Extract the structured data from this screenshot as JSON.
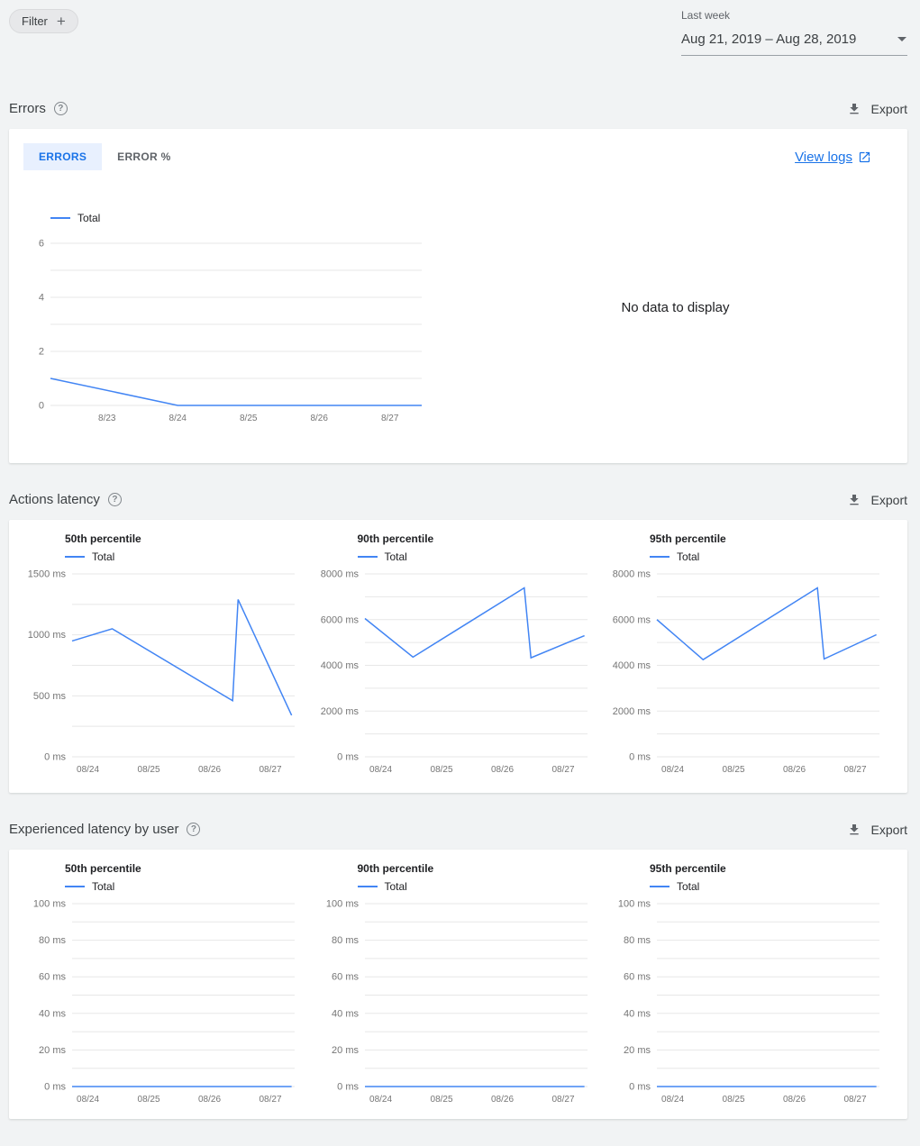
{
  "colors": {
    "accent": "#4285f4",
    "tab_active_bg": "#e8f0fe",
    "link": "#1a73e8",
    "page_bg": "#f1f3f4"
  },
  "icons": {
    "help_glyph": "?",
    "plus_glyph": "+"
  },
  "header": {
    "filter_label": "Filter",
    "period_label": "Last week",
    "period_value": "Aug 21, 2019 – Aug 28, 2019"
  },
  "errors_section": {
    "title": "Errors",
    "export_label": "Export",
    "tab_errors": "ERRORS",
    "tab_error_pct": "ERROR %",
    "view_logs_label": "View logs",
    "legend_label": "Total",
    "no_data_text": "No data to display",
    "chart_data": {
      "type": "line",
      "x_min": 22.2,
      "x_max": 27.45,
      "x_ticks": [
        {
          "v": 23,
          "label": "8/23"
        },
        {
          "v": 24,
          "label": "8/24"
        },
        {
          "v": 25,
          "label": "8/25"
        },
        {
          "v": 26,
          "label": "8/26"
        },
        {
          "v": 27,
          "label": "8/27"
        }
      ],
      "y_min": 0,
      "y_max": 6.2,
      "y_gridlines": [
        0,
        1,
        2,
        3,
        4,
        5,
        6
      ],
      "y_ticks": [
        {
          "v": 0,
          "label": "0"
        },
        {
          "v": 2,
          "label": "2"
        },
        {
          "v": 4,
          "label": "4"
        },
        {
          "v": 6,
          "label": "6"
        }
      ],
      "series": [
        {
          "name": "Total",
          "color": "#4285f4",
          "points": [
            [
              22.2,
              1
            ],
            [
              24,
              0
            ],
            [
              27.45,
              0
            ]
          ]
        }
      ]
    }
  },
  "actions_latency_section": {
    "title": "Actions latency",
    "export_label": "Export",
    "charts": [
      {
        "title": "50th percentile",
        "legend_label": "Total",
        "chart_data": {
          "type": "line",
          "x_min": 23.74,
          "x_max": 27.4,
          "x_ticks": [
            {
              "v": 24,
              "label": "08/24"
            },
            {
              "v": 25,
              "label": "08/25"
            },
            {
              "v": 26,
              "label": "08/26"
            },
            {
              "v": 27,
              "label": "08/27"
            }
          ],
          "y_min": 0,
          "y_max": 1500,
          "y_gridlines": [
            0,
            250,
            500,
            750,
            1000,
            1250,
            1500
          ],
          "y_ticks": [
            {
              "v": 0,
              "label": "0 ms"
            },
            {
              "v": 500,
              "label": "500 ms"
            },
            {
              "v": 1000,
              "label": "1000 ms"
            },
            {
              "v": 1500,
              "label": "1500 ms"
            }
          ],
          "series": [
            {
              "name": "Total",
              "color": "#4285f4",
              "points": [
                [
                  23.74,
                  950
                ],
                [
                  24.4,
                  1050
                ],
                [
                  26.38,
                  460
                ],
                [
                  26.47,
                  1290
                ],
                [
                  27.35,
                  340
                ]
              ]
            }
          ]
        }
      },
      {
        "title": "90th percentile",
        "legend_label": "Total",
        "chart_data": {
          "type": "line",
          "x_min": 23.74,
          "x_max": 27.4,
          "x_ticks": [
            {
              "v": 24,
              "label": "08/24"
            },
            {
              "v": 25,
              "label": "08/25"
            },
            {
              "v": 26,
              "label": "08/26"
            },
            {
              "v": 27,
              "label": "08/27"
            }
          ],
          "y_min": 0,
          "y_max": 8000,
          "y_gridlines": [
            0,
            1000,
            2000,
            3000,
            4000,
            5000,
            6000,
            7000,
            8000
          ],
          "y_ticks": [
            {
              "v": 0,
              "label": "0 ms"
            },
            {
              "v": 2000,
              "label": "2000 ms"
            },
            {
              "v": 4000,
              "label": "4000 ms"
            },
            {
              "v": 6000,
              "label": "6000 ms"
            },
            {
              "v": 8000,
              "label": "8000 ms"
            }
          ],
          "series": [
            {
              "name": "Total",
              "color": "#4285f4",
              "points": [
                [
                  23.74,
                  6050
                ],
                [
                  24.53,
                  4360
                ],
                [
                  26.36,
                  7390
                ],
                [
                  26.47,
                  4330
                ],
                [
                  27.35,
                  5300
                ]
              ]
            }
          ]
        }
      },
      {
        "title": "95th percentile",
        "legend_label": "Total",
        "chart_data": {
          "type": "line",
          "x_min": 23.74,
          "x_max": 27.4,
          "x_ticks": [
            {
              "v": 24,
              "label": "08/24"
            },
            {
              "v": 25,
              "label": "08/25"
            },
            {
              "v": 26,
              "label": "08/26"
            },
            {
              "v": 27,
              "label": "08/27"
            }
          ],
          "y_min": 0,
          "y_max": 8000,
          "y_gridlines": [
            0,
            1000,
            2000,
            3000,
            4000,
            5000,
            6000,
            7000,
            8000
          ],
          "y_ticks": [
            {
              "v": 0,
              "label": "0 ms"
            },
            {
              "v": 2000,
              "label": "2000 ms"
            },
            {
              "v": 4000,
              "label": "4000 ms"
            },
            {
              "v": 6000,
              "label": "6000 ms"
            },
            {
              "v": 8000,
              "label": "8000 ms"
            }
          ],
          "series": [
            {
              "name": "Total",
              "color": "#4285f4",
              "points": [
                [
                  23.74,
                  6000
                ],
                [
                  24.5,
                  4250
                ],
                [
                  26.38,
                  7390
                ],
                [
                  26.49,
                  4280
                ],
                [
                  27.35,
                  5340
                ]
              ]
            }
          ]
        }
      }
    ]
  },
  "user_latency_section": {
    "title": "Experienced latency by user",
    "export_label": "Export",
    "charts": [
      {
        "title": "50th percentile",
        "legend_label": "Total",
        "chart_data": {
          "type": "line",
          "x_min": 23.74,
          "x_max": 27.4,
          "x_ticks": [
            {
              "v": 24,
              "label": "08/24"
            },
            {
              "v": 25,
              "label": "08/25"
            },
            {
              "v": 26,
              "label": "08/26"
            },
            {
              "v": 27,
              "label": "08/27"
            }
          ],
          "y_min": 0,
          "y_max": 100,
          "y_gridlines": [
            0,
            10,
            20,
            30,
            40,
            50,
            60,
            70,
            80,
            90,
            100
          ],
          "y_ticks": [
            {
              "v": 0,
              "label": "0 ms"
            },
            {
              "v": 20,
              "label": "20 ms"
            },
            {
              "v": 40,
              "label": "40 ms"
            },
            {
              "v": 60,
              "label": "60 ms"
            },
            {
              "v": 80,
              "label": "80 ms"
            },
            {
              "v": 100,
              "label": "100 ms"
            }
          ],
          "series": [
            {
              "name": "Total",
              "color": "#4285f4",
              "points": [
                [
                  23.74,
                  0
                ],
                [
                  27.35,
                  0
                ]
              ]
            }
          ]
        }
      },
      {
        "title": "90th percentile",
        "legend_label": "Total",
        "chart_data": {
          "type": "line",
          "x_min": 23.74,
          "x_max": 27.4,
          "x_ticks": [
            {
              "v": 24,
              "label": "08/24"
            },
            {
              "v": 25,
              "label": "08/25"
            },
            {
              "v": 26,
              "label": "08/26"
            },
            {
              "v": 27,
              "label": "08/27"
            }
          ],
          "y_min": 0,
          "y_max": 100,
          "y_gridlines": [
            0,
            10,
            20,
            30,
            40,
            50,
            60,
            70,
            80,
            90,
            100
          ],
          "y_ticks": [
            {
              "v": 0,
              "label": "0 ms"
            },
            {
              "v": 20,
              "label": "20 ms"
            },
            {
              "v": 40,
              "label": "40 ms"
            },
            {
              "v": 60,
              "label": "60 ms"
            },
            {
              "v": 80,
              "label": "80 ms"
            },
            {
              "v": 100,
              "label": "100 ms"
            }
          ],
          "series": [
            {
              "name": "Total",
              "color": "#4285f4",
              "points": [
                [
                  23.74,
                  0
                ],
                [
                  27.35,
                  0
                ]
              ]
            }
          ]
        }
      },
      {
        "title": "95th percentile",
        "legend_label": "Total",
        "chart_data": {
          "type": "line",
          "x_min": 23.74,
          "x_max": 27.4,
          "x_ticks": [
            {
              "v": 24,
              "label": "08/24"
            },
            {
              "v": 25,
              "label": "08/25"
            },
            {
              "v": 26,
              "label": "08/26"
            },
            {
              "v": 27,
              "label": "08/27"
            }
          ],
          "y_min": 0,
          "y_max": 100,
          "y_gridlines": [
            0,
            10,
            20,
            30,
            40,
            50,
            60,
            70,
            80,
            90,
            100
          ],
          "y_ticks": [
            {
              "v": 0,
              "label": "0 ms"
            },
            {
              "v": 20,
              "label": "20 ms"
            },
            {
              "v": 40,
              "label": "40 ms"
            },
            {
              "v": 60,
              "label": "60 ms"
            },
            {
              "v": 80,
              "label": "80 ms"
            },
            {
              "v": 100,
              "label": "100 ms"
            }
          ],
          "series": [
            {
              "name": "Total",
              "color": "#4285f4",
              "points": [
                [
                  23.74,
                  0
                ],
                [
                  27.35,
                  0
                ]
              ]
            }
          ]
        }
      }
    ]
  }
}
